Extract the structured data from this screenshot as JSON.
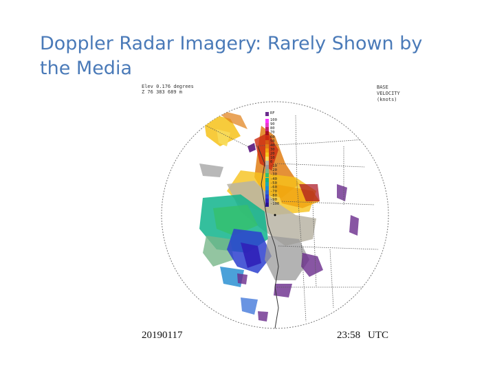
{
  "slide": {
    "title": "Doppler Radar Imagery:  Rarely Shown by the Media"
  },
  "radar": {
    "elev_line1": "Elev 0.176 degrees",
    "elev_line2": "Z 76 383 689 m",
    "product_title_line1": "BASE",
    "product_title_line2": "VELOCITY",
    "product_title_line3": "(knots)",
    "date": "20190117",
    "time": "23:58",
    "time_zone": "UTC",
    "legend": [
      {
        "label": "RF",
        "color": "#6a2c8c"
      },
      {
        "label": "100",
        "color": "#ff33ff"
      },
      {
        "label": "90",
        "color": "#e63cc8"
      },
      {
        "label": "80",
        "color": "#c21e6e"
      },
      {
        "label": "70",
        "color": "#a80f1e"
      },
      {
        "label": "60",
        "color": "#cc2a10"
      },
      {
        "label": "50",
        "color": "#d65a12"
      },
      {
        "label": "40",
        "color": "#e07e14"
      },
      {
        "label": "30",
        "color": "#f0a30e"
      },
      {
        "label": "20",
        "color": "#f6c21a"
      },
      {
        "label": "10",
        "color": "#f7db5a"
      },
      {
        "label": "0",
        "color": "#b8b4a4"
      },
      {
        "label": "-10",
        "color": "#9a9a9a"
      },
      {
        "label": "-20",
        "color": "#78b78a"
      },
      {
        "label": "-30",
        "color": "#35c070"
      },
      {
        "label": "-40",
        "color": "#10b48c"
      },
      {
        "label": "-50",
        "color": "#18a8b6"
      },
      {
        "label": "-60",
        "color": "#1e8ad0"
      },
      {
        "label": "-70",
        "color": "#2a66d6"
      },
      {
        "label": "-80",
        "color": "#2d3fcf"
      },
      {
        "label": "-90",
        "color": "#3020b8"
      },
      {
        "label": "-100",
        "color": "#2a1490"
      }
    ]
  }
}
